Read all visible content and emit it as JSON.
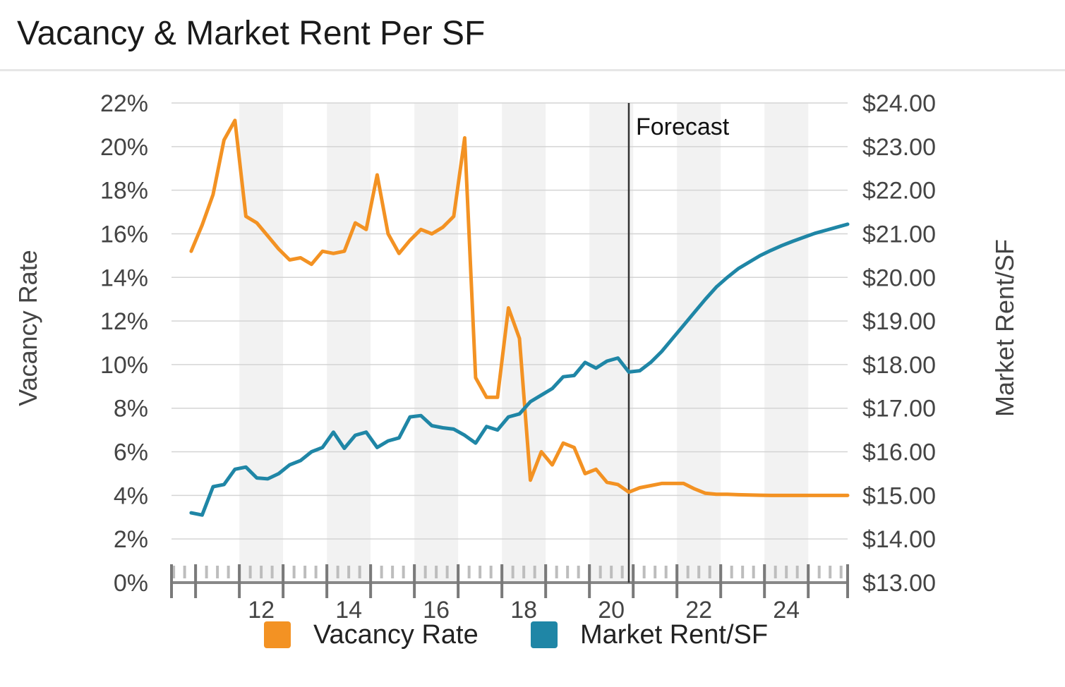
{
  "title": "Vacancy & Market Rent Per SF",
  "chart_data": {
    "type": "line",
    "title": "Vacancy & Market Rent Per SF",
    "x_tick_labels": [
      "12",
      "14",
      "16",
      "18",
      "20",
      "22",
      "24"
    ],
    "forecast_label": "Forecast",
    "forecast_start": 2020.5,
    "grid": true,
    "legend_placement": "bottom",
    "left_axis": {
      "label": "Vacancy Rate",
      "range": [
        0,
        22
      ],
      "tick_labels": [
        "0%",
        "2%",
        "4%",
        "6%",
        "8%",
        "10%",
        "12%",
        "14%",
        "16%",
        "18%",
        "20%",
        "22%"
      ]
    },
    "right_axis": {
      "label": "Market Rent/SF",
      "range": [
        13,
        24
      ],
      "tick_labels": [
        "$13.00",
        "$14.00",
        "$15.00",
        "$16.00",
        "$17.00",
        "$18.00",
        "$19.00",
        "$20.00",
        "$21.00",
        "$22.00",
        "$23.00",
        "$24.00"
      ]
    },
    "series": [
      {
        "name": "Vacancy Rate",
        "axis": "left",
        "color": "#f39223",
        "x": [
          2010.5,
          2010.75,
          2011.0,
          2011.25,
          2011.5,
          2011.75,
          2012.0,
          2012.25,
          2012.5,
          2012.75,
          2013.0,
          2013.25,
          2013.5,
          2013.75,
          2014.0,
          2014.25,
          2014.5,
          2014.75,
          2015.0,
          2015.25,
          2015.5,
          2015.75,
          2016.0,
          2016.25,
          2016.5,
          2016.75,
          2017.0,
          2017.25,
          2017.5,
          2017.75,
          2018.0,
          2018.25,
          2018.5,
          2018.75,
          2019.0,
          2019.25,
          2019.5,
          2019.75,
          2020.0,
          2020.25,
          2020.5,
          2020.75,
          2021.0,
          2021.25,
          2021.5,
          2021.75,
          2022.0,
          2022.25,
          2022.5,
          2022.75,
          2023.0,
          2023.25,
          2023.5,
          2023.75,
          2024.0,
          2024.25,
          2024.5,
          2024.75,
          2025.0,
          2025.25,
          2025.5
        ],
        "values": [
          15.2,
          16.4,
          17.8,
          20.3,
          21.2,
          16.8,
          16.5,
          15.9,
          15.3,
          14.8,
          14.9,
          14.6,
          15.2,
          15.1,
          15.2,
          16.5,
          16.2,
          18.7,
          16.0,
          15.1,
          15.7,
          16.2,
          16.0,
          16.3,
          16.8,
          20.4,
          9.4,
          8.5,
          8.5,
          12.6,
          11.2,
          4.7,
          6.0,
          5.4,
          6.4,
          6.2,
          5.0,
          5.2,
          4.6,
          4.5,
          4.15,
          4.35,
          4.45,
          4.55,
          4.55,
          4.55,
          4.3,
          4.1,
          4.05,
          4.05,
          4.03,
          4.02,
          4.01,
          4.0,
          4.0,
          4.0,
          4.0,
          4.0,
          4.0,
          4.0,
          4.0
        ]
      },
      {
        "name": "Market Rent/SF",
        "axis": "right",
        "color": "#1f86a6",
        "x": [
          2010.5,
          2010.75,
          2011.0,
          2011.25,
          2011.5,
          2011.75,
          2012.0,
          2012.25,
          2012.5,
          2012.75,
          2013.0,
          2013.25,
          2013.5,
          2013.75,
          2014.0,
          2014.25,
          2014.5,
          2014.75,
          2015.0,
          2015.25,
          2015.5,
          2015.75,
          2016.0,
          2016.25,
          2016.5,
          2016.75,
          2017.0,
          2017.25,
          2017.5,
          2017.75,
          2018.0,
          2018.25,
          2018.5,
          2018.75,
          2019.0,
          2019.25,
          2019.5,
          2019.75,
          2020.0,
          2020.25,
          2020.5,
          2020.75,
          2021.0,
          2021.25,
          2021.5,
          2021.75,
          2022.0,
          2022.25,
          2022.5,
          2022.75,
          2023.0,
          2023.25,
          2023.5,
          2023.75,
          2024.0,
          2024.25,
          2024.5,
          2024.75,
          2025.0,
          2025.25,
          2025.5
        ],
        "values": [
          14.6,
          14.55,
          15.2,
          15.25,
          15.6,
          15.65,
          15.4,
          15.38,
          15.5,
          15.7,
          15.8,
          16.0,
          16.1,
          16.45,
          16.08,
          16.38,
          16.45,
          16.1,
          16.25,
          16.32,
          16.8,
          16.83,
          16.6,
          16.55,
          16.52,
          16.38,
          16.2,
          16.58,
          16.5,
          16.8,
          16.87,
          17.15,
          17.3,
          17.45,
          17.72,
          17.75,
          18.05,
          17.92,
          18.08,
          18.15,
          17.83,
          17.86,
          18.05,
          18.3,
          18.6,
          18.9,
          19.2,
          19.5,
          19.78,
          20.0,
          20.2,
          20.35,
          20.5,
          20.62,
          20.73,
          20.83,
          20.92,
          21.01,
          21.08,
          21.15,
          21.22
        ]
      }
    ]
  }
}
